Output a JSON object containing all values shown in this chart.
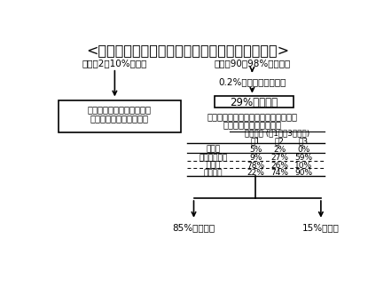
{
  "title": "<トキソプラズマの母子感染と出生児障害リスク>",
  "title_fontsize": 11.5,
  "bg_color": "#ffffff",
  "text_color": "#000000",
  "left_top_text": "妊婦の2～10%抗体有",
  "right_top_text": "妊婦の90～98%抗体なし",
  "right_step2_text": "0.2%前後に母体初感染",
  "box_left_line1": "高度の免疫抑制がない限り",
  "box_left_line2": "基本的に胎児感染はない",
  "box_right_text": "29%胎児感染",
  "table_caption_line1": "胎児感染や児の臨床症状出現リスクは",
  "table_caption_line2": "感染時期によって異なる",
  "table_header_span": "感染時期 (第1～第3三半期)",
  "table_col_headers": [
    "第1",
    "第2",
    "第3"
  ],
  "table_rows": [
    {
      "label": "流死産",
      "vals": [
        "5%",
        "2%",
        "0%"
      ]
    },
    {
      "label": "先天性感染児",
      "vals": [
        "9%",
        "27%",
        "59%"
      ]
    },
    {
      "label": "症候性",
      "vals": [
        "78%",
        "26%",
        "10%"
      ]
    },
    {
      "label": "無症候性",
      "vals": [
        "22%",
        "74%",
        "90%"
      ]
    }
  ],
  "bottom_left_text": "85%無症候性",
  "bottom_right_text": "15%症候性"
}
